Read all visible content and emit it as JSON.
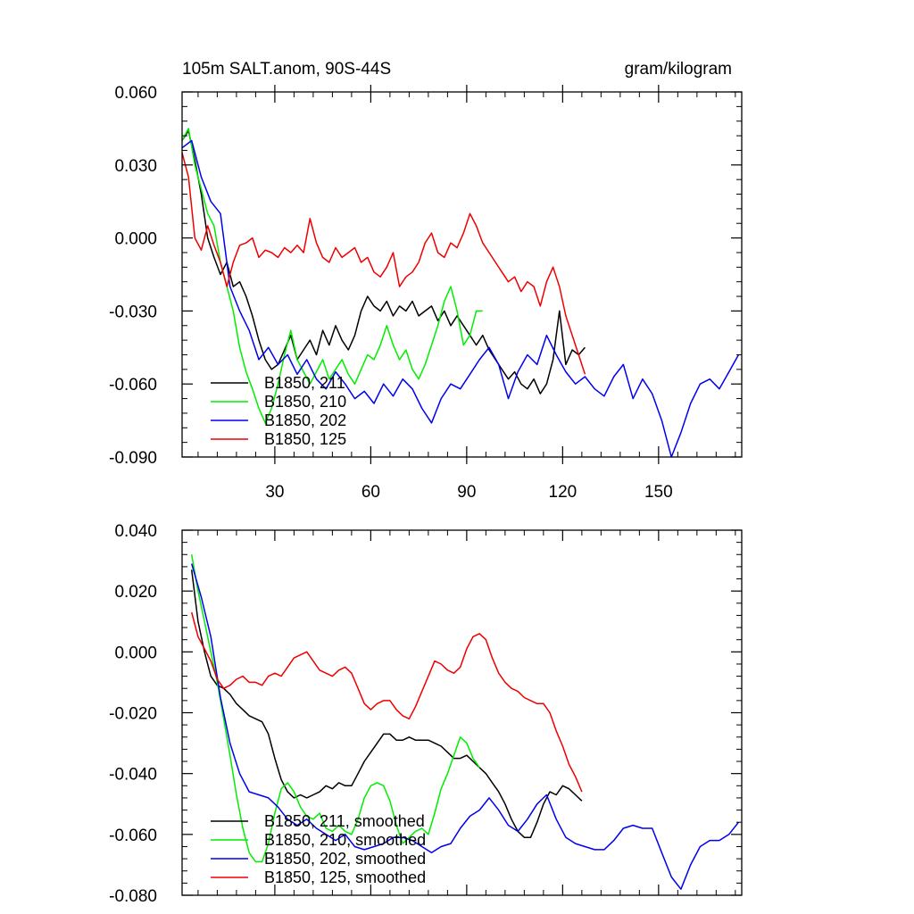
{
  "title_left": "105m SALT.anom, 90S-44S",
  "title_right": "gram/kilogram",
  "chart_data": [
    {
      "type": "line",
      "panel": "raw",
      "xlim": [
        1,
        176
      ],
      "ylim": [
        -0.09,
        0.06
      ],
      "yticks": [
        {
          "v": 0.06,
          "label": "0.060"
        },
        {
          "v": 0.03,
          "label": "0.030"
        },
        {
          "v": 0.0,
          "label": "0.000"
        },
        {
          "v": -0.03,
          "label": "-0.030"
        },
        {
          "v": -0.06,
          "label": "-0.060"
        },
        {
          "v": -0.09,
          "label": "-0.090"
        }
      ],
      "xticks": [
        {
          "v": 30,
          "label": "30"
        },
        {
          "v": 60,
          "label": "60"
        },
        {
          "v": 90,
          "label": "90"
        },
        {
          "v": 120,
          "label": "120"
        },
        {
          "v": 150,
          "label": "150"
        }
      ],
      "series": [
        {
          "name": "B1850, 211",
          "color": "#000000",
          "x": [
            1,
            3,
            5,
            7,
            9,
            11,
            13,
            15,
            17,
            19,
            21,
            23,
            25,
            27,
            29,
            31,
            33,
            35,
            37,
            39,
            41,
            43,
            45,
            47,
            49,
            51,
            53,
            55,
            57,
            59,
            61,
            63,
            65,
            67,
            69,
            71,
            73,
            75,
            77,
            79,
            81,
            83,
            85,
            87,
            89,
            91,
            93,
            95,
            97,
            99,
            101,
            103,
            105,
            107,
            109,
            111,
            113,
            115,
            117,
            119,
            121,
            123,
            125,
            127
          ],
          "y": [
            0.04,
            0.044,
            0.032,
            0.018,
            0.0,
            -0.008,
            -0.015,
            -0.01,
            -0.02,
            -0.018,
            -0.024,
            -0.032,
            -0.042,
            -0.05,
            -0.054,
            -0.052,
            -0.046,
            -0.04,
            -0.05,
            -0.046,
            -0.042,
            -0.048,
            -0.038,
            -0.044,
            -0.036,
            -0.042,
            -0.046,
            -0.04,
            -0.03,
            -0.024,
            -0.028,
            -0.03,
            -0.026,
            -0.032,
            -0.028,
            -0.03,
            -0.026,
            -0.032,
            -0.03,
            -0.028,
            -0.034,
            -0.03,
            -0.036,
            -0.032,
            -0.036,
            -0.04,
            -0.044,
            -0.04,
            -0.046,
            -0.05,
            -0.054,
            -0.058,
            -0.055,
            -0.06,
            -0.062,
            -0.058,
            -0.064,
            -0.06,
            -0.05,
            -0.03,
            -0.052,
            -0.046,
            -0.048,
            -0.045
          ]
        },
        {
          "name": "B1850, 210",
          "color": "#00ee00",
          "x": [
            1,
            3,
            5,
            7,
            9,
            11,
            13,
            15,
            17,
            19,
            21,
            23,
            25,
            27,
            29,
            31,
            33,
            35,
            37,
            39,
            41,
            43,
            45,
            47,
            49,
            51,
            53,
            55,
            57,
            59,
            61,
            63,
            65,
            67,
            69,
            71,
            73,
            75,
            77,
            79,
            81,
            83,
            85,
            87,
            89,
            91,
            93,
            95
          ],
          "y": [
            0.04,
            0.045,
            0.03,
            0.02,
            0.01,
            0.005,
            -0.01,
            -0.02,
            -0.03,
            -0.045,
            -0.055,
            -0.062,
            -0.07,
            -0.076,
            -0.07,
            -0.06,
            -0.048,
            -0.038,
            -0.05,
            -0.055,
            -0.06,
            -0.055,
            -0.05,
            -0.058,
            -0.054,
            -0.05,
            -0.056,
            -0.06,
            -0.054,
            -0.048,
            -0.05,
            -0.044,
            -0.036,
            -0.044,
            -0.05,
            -0.046,
            -0.054,
            -0.058,
            -0.052,
            -0.044,
            -0.036,
            -0.026,
            -0.02,
            -0.03,
            -0.044,
            -0.04,
            -0.03,
            -0.03
          ]
        },
        {
          "name": "B1850, 202",
          "color": "#0000ee",
          "x": [
            1,
            4,
            7,
            10,
            13,
            16,
            19,
            22,
            25,
            28,
            31,
            34,
            37,
            40,
            43,
            46,
            49,
            52,
            55,
            58,
            61,
            64,
            67,
            70,
            73,
            76,
            79,
            82,
            85,
            88,
            91,
            94,
            97,
            100,
            103,
            106,
            109,
            112,
            115,
            118,
            121,
            124,
            127,
            130,
            133,
            136,
            139,
            142,
            145,
            148,
            151,
            154,
            157,
            160,
            163,
            166,
            169,
            172,
            175
          ],
          "y": [
            0.037,
            0.04,
            0.025,
            0.015,
            0.01,
            -0.02,
            -0.03,
            -0.038,
            -0.05,
            -0.045,
            -0.052,
            -0.048,
            -0.056,
            -0.05,
            -0.058,
            -0.062,
            -0.055,
            -0.06,
            -0.066,
            -0.063,
            -0.068,
            -0.06,
            -0.065,
            -0.058,
            -0.062,
            -0.07,
            -0.076,
            -0.066,
            -0.06,
            -0.062,
            -0.056,
            -0.05,
            -0.045,
            -0.052,
            -0.066,
            -0.055,
            -0.048,
            -0.052,
            -0.04,
            -0.048,
            -0.055,
            -0.06,
            -0.057,
            -0.062,
            -0.065,
            -0.057,
            -0.052,
            -0.066,
            -0.058,
            -0.064,
            -0.075,
            -0.09,
            -0.08,
            -0.068,
            -0.06,
            -0.058,
            -0.062,
            -0.055,
            -0.048
          ]
        },
        {
          "name": "B1850, 125",
          "color": "#ee0000",
          "x": [
            1,
            3,
            5,
            7,
            9,
            11,
            13,
            15,
            17,
            19,
            21,
            23,
            25,
            27,
            29,
            31,
            33,
            35,
            37,
            39,
            41,
            43,
            45,
            47,
            49,
            51,
            53,
            55,
            57,
            59,
            61,
            63,
            65,
            67,
            69,
            71,
            73,
            75,
            77,
            79,
            81,
            83,
            85,
            87,
            89,
            91,
            93,
            95,
            97,
            99,
            101,
            103,
            105,
            107,
            109,
            111,
            113,
            115,
            117,
            119,
            121,
            123,
            125,
            127
          ],
          "y": [
            0.035,
            0.025,
            0.0,
            -0.005,
            0.005,
            -0.003,
            -0.01,
            -0.02,
            -0.01,
            -0.003,
            -0.002,
            0.0,
            -0.008,
            -0.005,
            -0.006,
            -0.008,
            -0.004,
            -0.006,
            -0.003,
            -0.006,
            0.008,
            -0.002,
            -0.008,
            -0.01,
            -0.004,
            -0.008,
            -0.006,
            -0.004,
            -0.01,
            -0.008,
            -0.014,
            -0.016,
            -0.012,
            -0.006,
            -0.02,
            -0.016,
            -0.014,
            -0.01,
            -0.002,
            0.002,
            -0.006,
            -0.008,
            -0.002,
            -0.004,
            0.002,
            0.01,
            0.005,
            -0.002,
            -0.006,
            -0.01,
            -0.014,
            -0.018,
            -0.016,
            -0.022,
            -0.018,
            -0.02,
            -0.028,
            -0.018,
            -0.012,
            -0.02,
            -0.032,
            -0.04,
            -0.048,
            -0.056
          ]
        }
      ],
      "legend": "lower-left"
    },
    {
      "type": "line",
      "panel": "smoothed",
      "xlim": [
        1,
        176
      ],
      "ylim": [
        -0.08,
        0.04
      ],
      "yticks": [
        {
          "v": 0.04,
          "label": "0.040"
        },
        {
          "v": 0.02,
          "label": "0.020"
        },
        {
          "v": 0.0,
          "label": "0.000"
        },
        {
          "v": -0.02,
          "label": "-0.020"
        },
        {
          "v": -0.04,
          "label": "-0.040"
        },
        {
          "v": -0.06,
          "label": "-0.060"
        },
        {
          "v": -0.08,
          "label": "-0.080"
        }
      ],
      "xticks": [],
      "series": [
        {
          "name": "B1850, 211, smoothed",
          "color": "#000000",
          "x": [
            4,
            6,
            8,
            10,
            12,
            14,
            16,
            18,
            20,
            22,
            24,
            26,
            28,
            30,
            32,
            34,
            36,
            38,
            40,
            42,
            44,
            46,
            48,
            50,
            52,
            54,
            56,
            58,
            60,
            62,
            64,
            66,
            68,
            70,
            72,
            74,
            76,
            78,
            80,
            82,
            84,
            86,
            88,
            90,
            92,
            94,
            96,
            98,
            100,
            102,
            104,
            106,
            108,
            110,
            112,
            114,
            116,
            118,
            120,
            122,
            124,
            126
          ],
          "y": [
            0.027,
            0.01,
            0.0,
            -0.008,
            -0.011,
            -0.012,
            -0.014,
            -0.017,
            -0.019,
            -0.021,
            -0.022,
            -0.023,
            -0.027,
            -0.035,
            -0.042,
            -0.046,
            -0.048,
            -0.047,
            -0.048,
            -0.047,
            -0.046,
            -0.044,
            -0.045,
            -0.043,
            -0.044,
            -0.044,
            -0.04,
            -0.036,
            -0.033,
            -0.03,
            -0.027,
            -0.027,
            -0.029,
            -0.029,
            -0.028,
            -0.029,
            -0.029,
            -0.029,
            -0.03,
            -0.031,
            -0.033,
            -0.035,
            -0.035,
            -0.034,
            -0.036,
            -0.038,
            -0.04,
            -0.043,
            -0.046,
            -0.05,
            -0.055,
            -0.059,
            -0.061,
            -0.061,
            -0.056,
            -0.05,
            -0.046,
            -0.047,
            -0.044,
            -0.045,
            -0.047,
            -0.049
          ]
        },
        {
          "name": "B1850, 210, smoothed",
          "color": "#00ee00",
          "x": [
            4,
            6,
            8,
            10,
            12,
            14,
            16,
            18,
            20,
            22,
            24,
            26,
            28,
            30,
            32,
            34,
            36,
            38,
            40,
            42,
            44,
            46,
            48,
            50,
            52,
            54,
            56,
            58,
            60,
            62,
            64,
            66,
            68,
            70,
            72,
            74,
            76,
            78,
            80,
            82,
            84,
            86,
            88,
            90,
            92,
            94
          ],
          "y": [
            0.032,
            0.02,
            0.01,
            0.0,
            -0.01,
            -0.022,
            -0.034,
            -0.047,
            -0.058,
            -0.066,
            -0.069,
            -0.069,
            -0.063,
            -0.053,
            -0.045,
            -0.043,
            -0.046,
            -0.051,
            -0.054,
            -0.055,
            -0.053,
            -0.058,
            -0.059,
            -0.057,
            -0.059,
            -0.06,
            -0.055,
            -0.048,
            -0.044,
            -0.043,
            -0.044,
            -0.049,
            -0.057,
            -0.063,
            -0.061,
            -0.059,
            -0.058,
            -0.06,
            -0.053,
            -0.045,
            -0.04,
            -0.034,
            -0.028,
            -0.03,
            -0.035,
            -0.038
          ]
        },
        {
          "name": "B1850, 202, smoothed",
          "color": "#0000ee",
          "x": [
            4,
            7,
            10,
            13,
            16,
            19,
            22,
            25,
            28,
            31,
            34,
            37,
            40,
            43,
            46,
            49,
            52,
            55,
            58,
            61,
            64,
            67,
            70,
            73,
            76,
            79,
            82,
            85,
            88,
            91,
            94,
            97,
            100,
            103,
            106,
            109,
            112,
            115,
            118,
            121,
            124,
            127,
            130,
            133,
            136,
            139,
            142,
            145,
            148,
            151,
            154,
            157,
            160,
            163,
            166,
            169,
            172,
            175
          ],
          "y": [
            0.029,
            0.018,
            0.005,
            -0.015,
            -0.03,
            -0.04,
            -0.046,
            -0.047,
            -0.048,
            -0.051,
            -0.055,
            -0.057,
            -0.055,
            -0.058,
            -0.06,
            -0.062,
            -0.06,
            -0.064,
            -0.065,
            -0.064,
            -0.063,
            -0.061,
            -0.061,
            -0.062,
            -0.064,
            -0.066,
            -0.064,
            -0.063,
            -0.058,
            -0.054,
            -0.052,
            -0.048,
            -0.052,
            -0.057,
            -0.059,
            -0.055,
            -0.05,
            -0.047,
            -0.055,
            -0.061,
            -0.063,
            -0.064,
            -0.065,
            -0.065,
            -0.062,
            -0.058,
            -0.057,
            -0.058,
            -0.058,
            -0.066,
            -0.074,
            -0.078,
            -0.07,
            -0.064,
            -0.062,
            -0.062,
            -0.06,
            -0.056
          ]
        },
        {
          "name": "B1850, 125, smoothed",
          "color": "#ee0000",
          "x": [
            4,
            6,
            8,
            10,
            12,
            14,
            16,
            18,
            20,
            22,
            24,
            26,
            28,
            30,
            32,
            34,
            36,
            38,
            40,
            42,
            44,
            46,
            48,
            50,
            52,
            54,
            56,
            58,
            60,
            62,
            64,
            66,
            68,
            70,
            72,
            74,
            76,
            78,
            80,
            82,
            84,
            86,
            88,
            90,
            92,
            94,
            96,
            98,
            100,
            102,
            104,
            106,
            108,
            110,
            112,
            114,
            116,
            118,
            120,
            122,
            124,
            126
          ],
          "y": [
            0.013,
            0.005,
            0.001,
            -0.003,
            -0.009,
            -0.012,
            -0.011,
            -0.009,
            -0.008,
            -0.01,
            -0.01,
            -0.011,
            -0.008,
            -0.007,
            -0.008,
            -0.005,
            -0.002,
            -0.001,
            0.0,
            -0.003,
            -0.006,
            -0.007,
            -0.008,
            -0.006,
            -0.005,
            -0.007,
            -0.012,
            -0.017,
            -0.019,
            -0.017,
            -0.016,
            -0.016,
            -0.019,
            -0.021,
            -0.022,
            -0.018,
            -0.013,
            -0.008,
            -0.003,
            -0.004,
            -0.006,
            -0.007,
            -0.005,
            0.001,
            0.005,
            0.006,
            0.004,
            -0.002,
            -0.007,
            -0.01,
            -0.012,
            -0.013,
            -0.015,
            -0.016,
            -0.017,
            -0.017,
            -0.02,
            -0.026,
            -0.031,
            -0.037,
            -0.041,
            -0.046
          ]
        }
      ],
      "legend": "lower-left"
    }
  ]
}
